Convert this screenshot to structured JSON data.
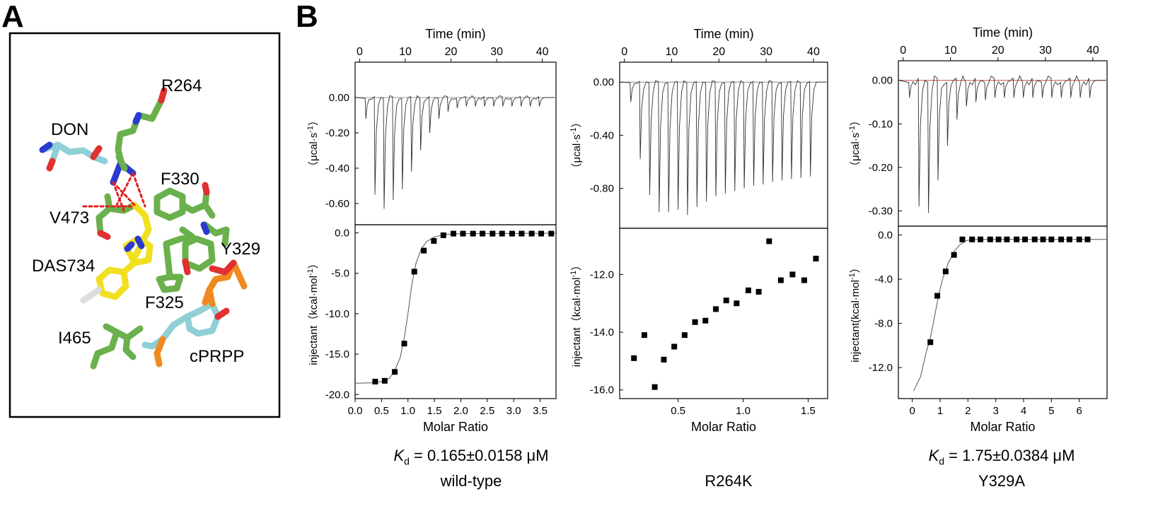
{
  "panels": {
    "a": "A",
    "b": "B"
  },
  "structure": {
    "labels": [
      "R264",
      "DON",
      "F330",
      "V473",
      "Y329",
      "DAS734",
      "F325",
      "I465",
      "cPRPP"
    ],
    "colors": {
      "carbon_protein": "#6ab04c",
      "carbon_ligand": "#f0e020",
      "carbon_substrate": "#8fd0d6",
      "nitrogen": "#2b3bd0",
      "oxygen": "#e03030",
      "phosphorus": "#f08a20",
      "hbond": "#e02020"
    }
  },
  "chart_data": [
    {
      "type": "line",
      "name": "wild-type",
      "top": {
        "xlabel": "Time (min)",
        "xlim": [
          -1,
          43
        ],
        "xticks": [
          0,
          10,
          20,
          30,
          40
        ],
        "ylabel_main": "（μcal·s",
        "ylabel_sup": "-1",
        "ylabel_end": "）",
        "ylim": [
          -0.72,
          0.2
        ],
        "yticks": [
          0.0,
          -0.2,
          -0.4,
          -0.6
        ],
        "yticklabels": [
          "0.00",
          "-0.20",
          "-0.40",
          "-0.60"
        ],
        "injections": {
          "start": 1.2,
          "interval": 2.0,
          "count": 20,
          "peaks": [
            -0.12,
            -0.55,
            -0.63,
            -0.58,
            -0.52,
            -0.42,
            -0.3,
            -0.2,
            -0.12,
            -0.08,
            -0.06,
            -0.05,
            -0.05,
            -0.05,
            -0.05,
            -0.05,
            -0.05,
            -0.05,
            -0.05,
            -0.05
          ]
        }
      },
      "bottom": {
        "xlabel": "Molar Ratio",
        "xlim": [
          0,
          3.8
        ],
        "xticks": [
          0,
          0.5,
          1.0,
          1.5,
          2.0,
          2.5,
          3.0,
          3.5
        ],
        "xticklabels": [
          "0.0",
          "0.5",
          "1.0",
          "1.5",
          "2.0",
          "2.5",
          "3.0",
          "3.5"
        ],
        "ylabel_main": "injectant（kcal·mol",
        "ylabel_sup": "-1",
        "ylabel_end": "）",
        "ylim": [
          -20.5,
          1.0
        ],
        "yticks": [
          0,
          -5,
          -10,
          -15,
          -20
        ],
        "yticklabels": [
          "0.0",
          "-5.0",
          "-10.0",
          "-15.0",
          "-20.0"
        ],
        "points": [
          [
            0.38,
            -18.4
          ],
          [
            0.56,
            -18.3
          ],
          [
            0.75,
            -17.2
          ],
          [
            0.93,
            -13.7
          ],
          [
            1.12,
            -4.8
          ],
          [
            1.3,
            -2.2
          ],
          [
            1.49,
            -1.0
          ],
          [
            1.67,
            -0.3
          ],
          [
            1.86,
            -0.1
          ],
          [
            2.04,
            -0.1
          ],
          [
            2.23,
            -0.1
          ],
          [
            2.41,
            -0.1
          ],
          [
            2.6,
            -0.1
          ],
          [
            2.78,
            -0.1
          ],
          [
            2.97,
            -0.1
          ],
          [
            3.15,
            -0.1
          ],
          [
            3.34,
            -0.1
          ],
          [
            3.52,
            -0.1
          ],
          [
            3.71,
            -0.1
          ]
        ],
        "fit": [
          [
            0.0,
            -18.6
          ],
          [
            0.3,
            -18.55
          ],
          [
            0.5,
            -18.4
          ],
          [
            0.65,
            -18.0
          ],
          [
            0.75,
            -17.0
          ],
          [
            0.85,
            -15.5
          ],
          [
            0.93,
            -13.0
          ],
          [
            1.0,
            -10.0
          ],
          [
            1.07,
            -6.5
          ],
          [
            1.15,
            -3.8
          ],
          [
            1.25,
            -2.0
          ],
          [
            1.35,
            -1.1
          ],
          [
            1.5,
            -0.5
          ],
          [
            1.7,
            -0.2
          ],
          [
            2.0,
            -0.1
          ],
          [
            3.8,
            -0.05
          ]
        ]
      },
      "kd_label": "K",
      "kd_sub": "d",
      "kd_text": " = 0.165±0.0158 μM",
      "variant": "wild-type"
    },
    {
      "type": "line",
      "name": "R264K",
      "top": {
        "xlabel": "Time (min)",
        "xlim": [
          -1,
          43
        ],
        "xticks": [
          0,
          10,
          20,
          30,
          40
        ],
        "ylabel_main": "（μcal·s",
        "ylabel_sup": "-1",
        "ylabel_end": "）",
        "ylim": [
          -1.1,
          0.15
        ],
        "yticks": [
          0.0,
          -0.4,
          -0.8
        ],
        "yticklabels": [
          "0.00",
          "-0.40",
          "-0.80"
        ],
        "injections": {
          "start": 1.2,
          "interval": 2.0,
          "count": 20,
          "peaks": [
            -0.15,
            -0.58,
            -0.85,
            -0.98,
            -0.98,
            -0.96,
            -1.0,
            -0.94,
            -0.9,
            -0.86,
            -0.84,
            -0.82,
            -0.8,
            -0.78,
            -0.77,
            -0.75,
            -0.74,
            -0.73,
            -0.72,
            -0.71
          ]
        }
      },
      "bottom": {
        "xlabel": "Molar Ratio",
        "xlim": [
          0.05,
          1.65
        ],
        "xticks": [
          0.5,
          1.0,
          1.5
        ],
        "xticklabels": [
          "0.5",
          "1.0",
          "1.5"
        ],
        "ylabel_main": "injectant（kcal·mol",
        "ylabel_sup": "-1",
        "ylabel_end": "）",
        "ylim": [
          -16.3,
          -10.4
        ],
        "yticks": [
          -12,
          -14,
          -16
        ],
        "yticklabels": [
          "-12.0",
          "-14.0",
          "-16.0"
        ],
        "points": [
          [
            0.16,
            -14.9
          ],
          [
            0.24,
            -14.1
          ],
          [
            0.32,
            -15.9
          ],
          [
            0.39,
            -14.95
          ],
          [
            0.47,
            -14.5
          ],
          [
            0.55,
            -14.1
          ],
          [
            0.63,
            -13.65
          ],
          [
            0.71,
            -13.6
          ],
          [
            0.79,
            -13.2
          ],
          [
            0.87,
            -12.9
          ],
          [
            0.95,
            -13.0
          ],
          [
            1.04,
            -12.55
          ],
          [
            1.12,
            -12.6
          ],
          [
            1.2,
            -10.85
          ],
          [
            1.29,
            -12.2
          ],
          [
            1.38,
            -12.0
          ],
          [
            1.47,
            -12.2
          ],
          [
            1.56,
            -11.45
          ]
        ],
        "fit": []
      },
      "kd_label": "",
      "kd_sub": "",
      "kd_text": "",
      "variant": "R264K"
    },
    {
      "type": "line",
      "name": "Y329A",
      "top": {
        "xlabel": "Time (min)",
        "xlim": [
          -1,
          43
        ],
        "xticks": [
          0,
          10,
          20,
          30,
          40
        ],
        "ylabel_main": "（μcal·s",
        "ylabel_sup": "-1",
        "ylabel_end": "）",
        "ylim": [
          -0.335,
          0.045
        ],
        "yticks": [
          0.0,
          -0.1,
          -0.2,
          -0.3
        ],
        "yticklabels": [
          "0.00",
          "-0.10",
          "-0.20",
          "-0.30"
        ],
        "injections": {
          "start": 1.2,
          "interval": 2.0,
          "count": 20,
          "peaks": [
            -0.04,
            -0.29,
            -0.305,
            -0.23,
            -0.15,
            -0.09,
            -0.06,
            -0.05,
            -0.045,
            -0.04,
            -0.04,
            -0.04,
            -0.04,
            -0.04,
            -0.04,
            -0.04,
            -0.04,
            -0.04,
            -0.04,
            -0.04
          ]
        }
      },
      "bottom": {
        "xlabel": "Molar Ratio",
        "xlim": [
          -0.5,
          7.0
        ],
        "xticks": [
          0,
          1,
          2,
          3,
          4,
          5,
          6
        ],
        "xticklabels": [
          "0",
          "1",
          "2",
          "3",
          "4",
          "5",
          "6"
        ],
        "ylabel_main": "injectant(kcal·mol",
        "ylabel_sup": "-1",
        "ylabel_end": "）",
        "ylim": [
          -14.8,
          0.8
        ],
        "yticks": [
          0,
          -4,
          -8,
          -12
        ],
        "yticklabels": [
          "0.0",
          "-4.0",
          "-8.0",
          "-12.0"
        ],
        "points": [
          [
            0.65,
            -9.7
          ],
          [
            0.9,
            -5.5
          ],
          [
            1.2,
            -3.3
          ],
          [
            1.5,
            -1.8
          ],
          [
            1.8,
            -0.4
          ],
          [
            2.15,
            -0.4
          ],
          [
            2.45,
            -0.4
          ],
          [
            2.8,
            -0.4
          ],
          [
            3.1,
            -0.4
          ],
          [
            3.4,
            -0.4
          ],
          [
            3.75,
            -0.4
          ],
          [
            4.05,
            -0.4
          ],
          [
            4.4,
            -0.4
          ],
          [
            4.7,
            -0.4
          ],
          [
            5.0,
            -0.4
          ],
          [
            5.35,
            -0.4
          ],
          [
            5.65,
            -0.4
          ],
          [
            6.0,
            -0.4
          ],
          [
            6.3,
            -0.4
          ]
        ],
        "fit": [
          [
            0.05,
            -14.1
          ],
          [
            0.3,
            -12.8
          ],
          [
            0.5,
            -10.6
          ],
          [
            0.65,
            -9.3
          ],
          [
            0.8,
            -7.4
          ],
          [
            0.95,
            -5.4
          ],
          [
            1.1,
            -3.9
          ],
          [
            1.3,
            -2.5
          ],
          [
            1.5,
            -1.5
          ],
          [
            1.7,
            -0.9
          ],
          [
            1.95,
            -0.5
          ],
          [
            2.3,
            -0.4
          ],
          [
            7.0,
            -0.4
          ]
        ]
      },
      "kd_label": "K",
      "kd_sub": "d",
      "kd_text": " = 1.75±0.0384 μM",
      "variant": "Y329A"
    }
  ]
}
